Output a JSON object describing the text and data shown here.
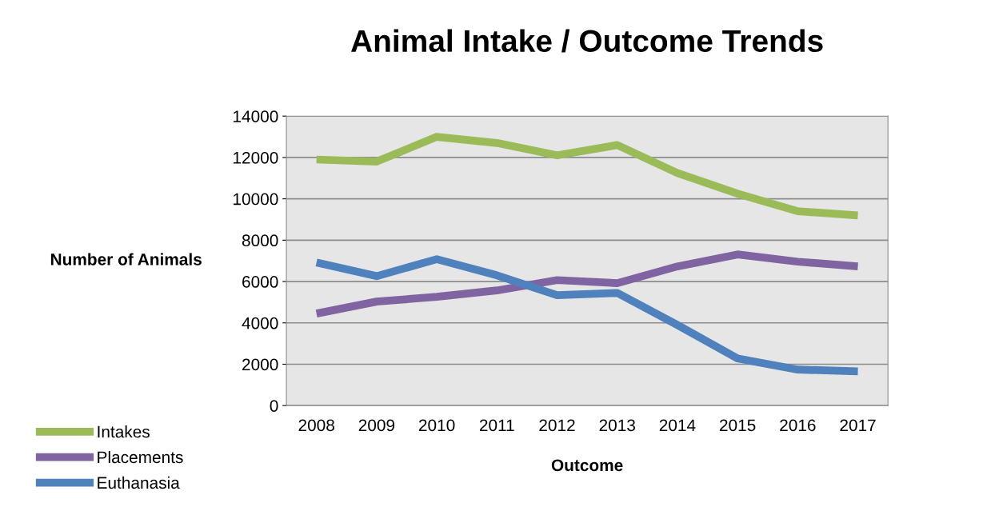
{
  "chart_data": {
    "type": "line",
    "title": "Animal Intake / Outcome Trends",
    "xlabel": "Outcome",
    "ylabel": "Number of Animals",
    "categories": [
      "2008",
      "2009",
      "2010",
      "2011",
      "2012",
      "2013",
      "2014",
      "2015",
      "2016",
      "2017"
    ],
    "series": [
      {
        "name": "Intakes",
        "color": "#9bbb59",
        "values": [
          11900,
          11800,
          13000,
          12700,
          12100,
          12600,
          11250,
          10250,
          9400,
          9200
        ]
      },
      {
        "name": "Placements",
        "color": "#8064a2",
        "values": [
          4450,
          5030,
          5260,
          5570,
          6070,
          5920,
          6730,
          7310,
          6960,
          6730
        ]
      },
      {
        "name": "Euthanasia",
        "color": "#4f81bd",
        "values": [
          6920,
          6260,
          7080,
          6300,
          5340,
          5450,
          3900,
          2280,
          1740,
          1660
        ]
      }
    ],
    "ylim": [
      0,
      14000
    ],
    "yticks": [
      0,
      2000,
      4000,
      6000,
      8000,
      10000,
      12000,
      14000
    ],
    "grid": "y",
    "legend": "bottom left",
    "marker": "none",
    "line_style": "solid"
  }
}
